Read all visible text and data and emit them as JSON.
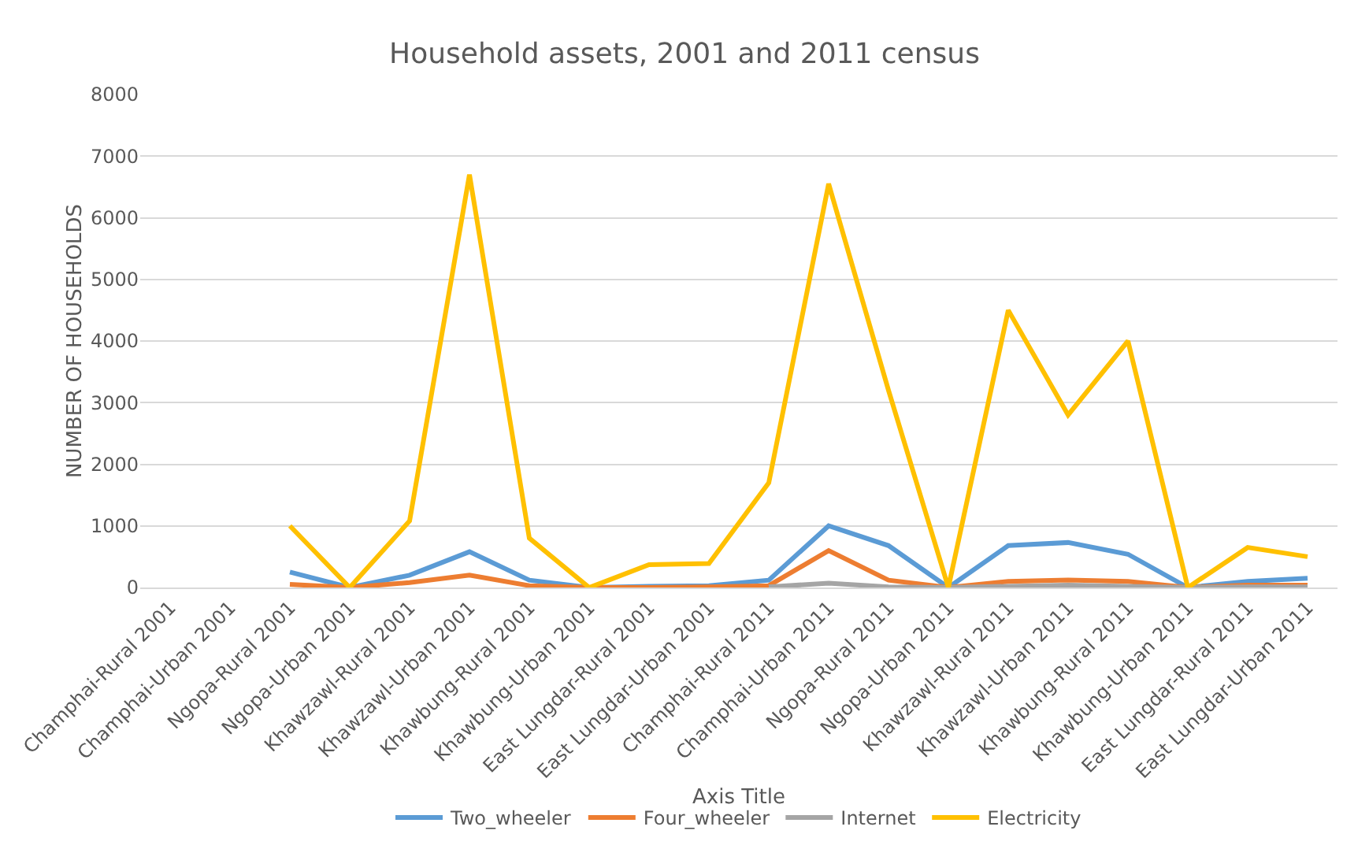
{
  "chart_data": {
    "type": "line",
    "title": "Household assets, 2001 and 2011 census",
    "xlabel": "Axis Title",
    "ylabel": "NUMBER OF HOUSEHOLDS",
    "categories": [
      "Champhai-Rural 2001",
      "Champhai-Urban 2001",
      "Ngopa-Rural 2001",
      "Ngopa-Urban 2001",
      "Khawzawl-Rural 2001",
      "Khawzawl-Urban 2001",
      "Khawbung-Rural 2001",
      "Khawbung-Urban 2001",
      "East Lungdar-Rural 2001",
      "East Lungdar-Urban 2001",
      "Champhai-Rural 2011",
      "Champhai-Urban 2011",
      "Ngopa-Rural 2011",
      "Ngopa-Urban 2011",
      "Khawzawl-Rural 2011",
      "Khawzawl-Urban 2011",
      "Khawbung-Rural 2011",
      "Khawbung-Urban 2011",
      "East Lungdar-Rural 2011",
      "East Lungdar-Urban 2011"
    ],
    "series": [
      {
        "name": "Two_wheeler",
        "color": "#5b9bd5",
        "values": [
          null,
          null,
          250,
          0,
          200,
          580,
          120,
          0,
          20,
          30,
          120,
          1000,
          680,
          0,
          680,
          730,
          540,
          0,
          100,
          150
        ]
      },
      {
        "name": "Four_wheeler",
        "color": "#ed7d31",
        "values": [
          null,
          null,
          50,
          0,
          80,
          200,
          30,
          0,
          0,
          10,
          30,
          600,
          120,
          0,
          100,
          120,
          100,
          0,
          40,
          40
        ]
      },
      {
        "name": "Internet",
        "color": "#a5a5a5",
        "values": [
          null,
          null,
          null,
          null,
          null,
          null,
          null,
          null,
          null,
          null,
          10,
          70,
          10,
          0,
          20,
          40,
          20,
          0,
          10,
          10
        ]
      },
      {
        "name": "Electricity",
        "color": "#ffc000",
        "values": [
          null,
          null,
          1000,
          0,
          1080,
          6700,
          800,
          0,
          370,
          390,
          1700,
          6550,
          3200,
          0,
          4500,
          2800,
          4000,
          0,
          650,
          500
        ]
      }
    ],
    "ylim": [
      0,
      8000
    ],
    "yticks": [
      0,
      1000,
      2000,
      3000,
      4000,
      5000,
      6000,
      7000,
      8000
    ],
    "grid": "y",
    "legend": "bottom",
    "marker": "none",
    "line_style": "solid"
  }
}
